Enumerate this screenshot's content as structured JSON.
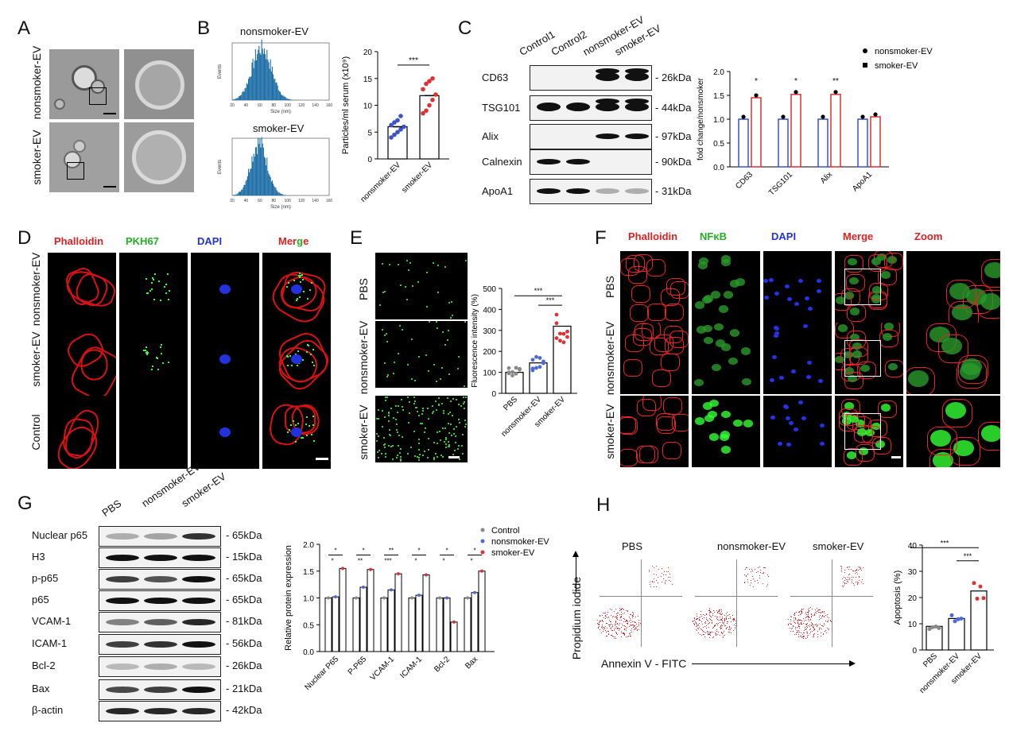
{
  "panels": {
    "A": "A",
    "B": "B",
    "C": "C",
    "D": "D",
    "E": "E",
    "F": "F",
    "G": "G",
    "H": "H"
  },
  "A": {
    "rows": [
      "nonsmoker-EV",
      "smoker-EV"
    ]
  },
  "B": {
    "hist_titles": [
      "nonsmoker-EV",
      "smoker-EV"
    ],
    "hist_xlabel": "Size (nm)",
    "hist_ylabel": "Events",
    "hist_xticks": [
      "20",
      "40",
      "60",
      "80",
      "100",
      "120",
      "140",
      "160"
    ],
    "chart_data": {
      "type": "bar",
      "categories": [
        "nonsmoker-EV",
        "smoker-EV"
      ],
      "values": [
        6.0,
        11.8
      ],
      "ylabel": "Particles/ml serum (x10⁹)",
      "ylim": [
        0,
        20
      ],
      "yticks": [
        "0",
        "5",
        "10",
        "15",
        "20"
      ],
      "points": {
        "nonsmoker-EV": [
          4.0,
          4.5,
          5.0,
          5.5,
          6.0,
          6.3,
          6.8,
          7.2,
          8.0
        ],
        "smoker-EV": [
          8.5,
          9.0,
          10.0,
          11.0,
          12.0,
          13.0,
          14.0,
          14.5,
          15.0
        ]
      },
      "sig": "***",
      "colors": [
        "#3a53c9",
        "#e03030"
      ]
    }
  },
  "C": {
    "lanes": [
      "Control1",
      "Control2",
      "nonsmoker-EV",
      "smoker-EV"
    ],
    "proteins": [
      "CD63",
      "TSG101",
      "Alix",
      "Calnexin",
      "ApoA1"
    ],
    "kda": [
      "- 26kDa",
      "- 44kDa",
      "- 97kDa",
      "- 90kDa",
      "- 31kDa"
    ],
    "chart_data": {
      "type": "bar",
      "categories": [
        "CD63",
        "TSG101",
        "Alix",
        "ApoA1"
      ],
      "series": [
        {
          "name": "nonsmoker-EV",
          "values": [
            1.0,
            1.0,
            1.0,
            1.0
          ]
        },
        {
          "name": "smoker-EV",
          "values": [
            1.45,
            1.52,
            1.52,
            1.05
          ]
        }
      ],
      "ylabel": "fold change/nonsmoker",
      "ylim": [
        0,
        2.0
      ],
      "yticks": [
        "0.0",
        "0.5",
        "1.0",
        "1.5",
        "2.0"
      ],
      "sig": [
        "*",
        "*",
        "**",
        ""
      ]
    }
  },
  "D": {
    "columns": [
      "Phalloidin",
      "PKH67",
      "DAPI",
      "Merge"
    ],
    "rows": [
      "nonsmoker-EV",
      "smoker-EV",
      "Control"
    ]
  },
  "E": {
    "rows": [
      "PBS",
      "nonsmoker-EV",
      "smoker-EV"
    ],
    "chart_data": {
      "type": "bar",
      "categories": [
        "PBS",
        "nonsmoker-EV",
        "smoker-EV"
      ],
      "values": [
        100,
        145,
        320
      ],
      "ylabel": "Fluorescence intensity (%)",
      "ylim": [
        0,
        500
      ],
      "yticks": [
        "0",
        "100",
        "200",
        "300",
        "400",
        "500"
      ],
      "sig": [
        "***",
        "***"
      ]
    }
  },
  "F": {
    "columns": [
      "Phalloidin",
      "NFκB",
      "DAPI",
      "Merge",
      "Zoom"
    ],
    "rows": [
      "PBS",
      "nonsmoker-EV",
      "smoker-EV"
    ]
  },
  "G": {
    "lanes": [
      "PBS",
      "nonsmoker-EV",
      "smoker-EV"
    ],
    "proteins": [
      "Nuclear p65",
      "H3",
      "p-p65",
      "p65",
      "VCAM-1",
      "ICAM-1",
      "Bcl-2",
      "Bax",
      "β-actin"
    ],
    "kda": [
      "- 65kDa",
      "- 15kDa",
      "- 65kDa",
      "- 65kDa",
      "- 81kDa",
      "- 56kDa",
      "- 26kDa",
      "- 21kDa",
      "- 42kDa"
    ],
    "chart_data": {
      "type": "bar",
      "categories": [
        "Nuclear P65",
        "P-P65",
        "VCAM-1",
        "ICAM-1",
        "Bcl-2",
        "Bax"
      ],
      "series": [
        {
          "name": "Control",
          "values": [
            1.0,
            1.0,
            1.0,
            1.0,
            1.0,
            1.0
          ]
        },
        {
          "name": "nonsmoker-EV",
          "values": [
            1.02,
            1.2,
            1.15,
            1.05,
            1.0,
            1.1
          ]
        },
        {
          "name": "smoker-EV",
          "values": [
            1.55,
            1.53,
            1.45,
            1.43,
            0.55,
            1.5
          ]
        }
      ],
      "ylabel": "Relative protein expression",
      "ylim": [
        0,
        2.0
      ],
      "yticks": [
        "0.0",
        "0.5",
        "1.0",
        "1.5",
        "2.0"
      ],
      "sig_top": [
        "*",
        "*",
        "**",
        "*",
        "*",
        "*"
      ],
      "sig_bottom": [
        "*",
        "**",
        "***",
        "*",
        "*",
        "*"
      ]
    }
  },
  "H": {
    "plot_titles": [
      "PBS",
      "nonsmoker-EV",
      "smoker-EV"
    ],
    "xlabel": "Annexin V - FITC",
    "ylabel": "Propidium iodide",
    "chart_data": {
      "type": "bar",
      "categories": [
        "PBS",
        "nonsmoker-EV",
        "smoker-EV"
      ],
      "values": [
        9,
        12,
        22.5
      ],
      "ylabel": "Apoptosis (%)",
      "ylim": [
        0,
        40
      ],
      "yticks": [
        "0",
        "10",
        "20",
        "30",
        "40"
      ],
      "sig": [
        "***",
        "***"
      ]
    }
  }
}
